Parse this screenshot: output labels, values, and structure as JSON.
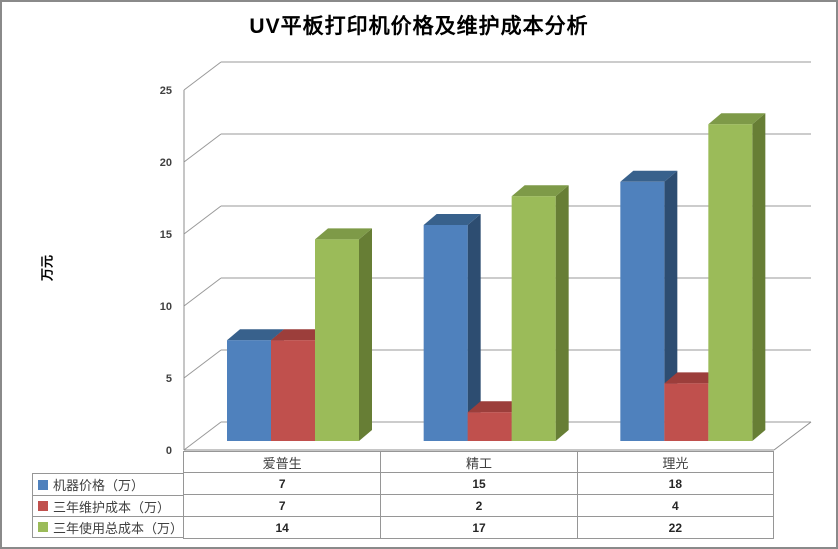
{
  "frame": {
    "background": "#FFFFFF",
    "border_color": "#8A8A8A"
  },
  "chart_data": {
    "type": "bar",
    "variant": "3d-clustered-column",
    "title": "UV平板打印机价格及维护成本分析",
    "xlabel": "",
    "ylabel": "万元",
    "categories": [
      "爱普生",
      "精工",
      "理光"
    ],
    "series": [
      {
        "name": "机器价格（万）",
        "values": [
          7,
          15,
          18
        ],
        "color": "#4F81BD",
        "color_top": "#38618C",
        "color_side": "#2D4D71"
      },
      {
        "name": "三年维护成本（万）",
        "values": [
          7,
          2,
          4
        ],
        "color": "#C0504D",
        "color_top": "#9C3E3B",
        "color_side": "#8C3836"
      },
      {
        "name": "三年使用总成本（万）",
        "values": [
          14,
          17,
          22
        ],
        "color": "#9BBB59",
        "color_top": "#7E9A48",
        "color_side": "#677E35"
      }
    ],
    "ylim": [
      0,
      25
    ],
    "yticks": [
      0,
      5,
      10,
      15,
      20,
      25
    ],
    "grid": true,
    "gridline_color": "#999999",
    "axis_color": "#8E8E8E",
    "legend_position": "bottom-left-table",
    "data_table": true,
    "table_border_color": "#969696"
  }
}
